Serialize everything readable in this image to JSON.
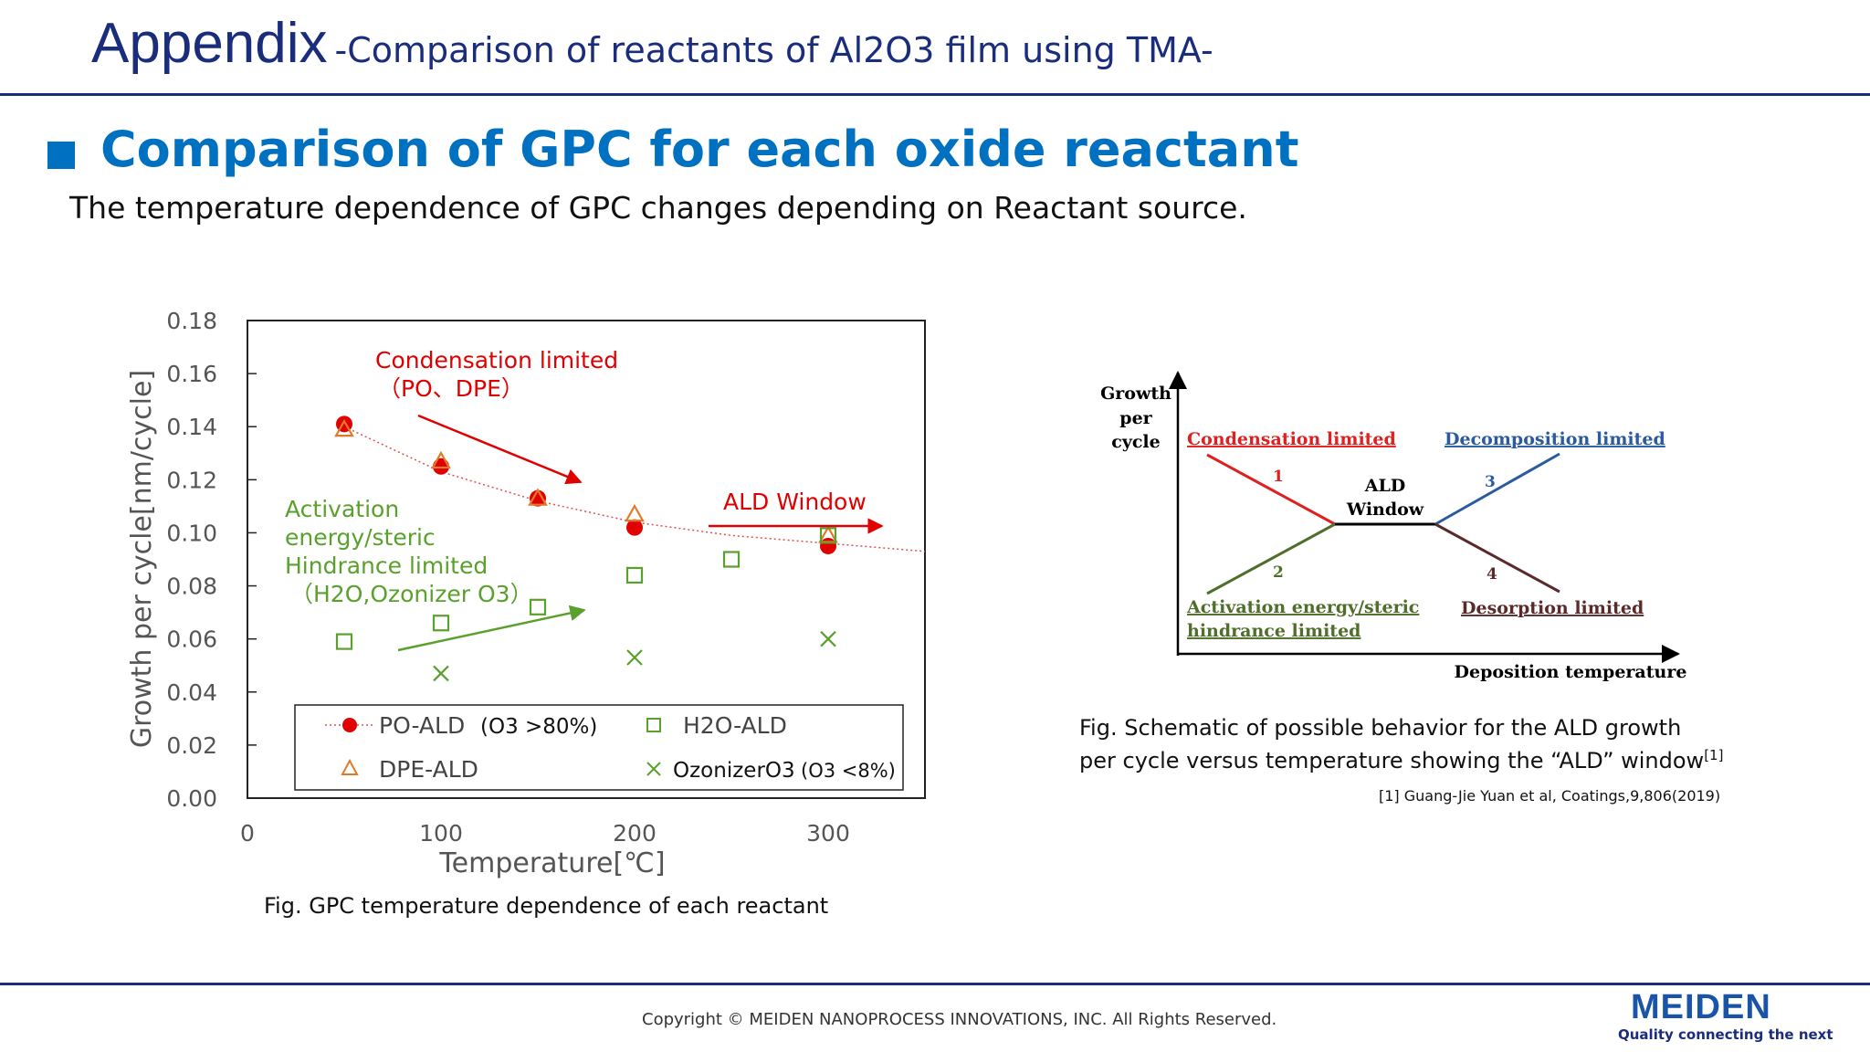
{
  "header": {
    "title": "Appendix",
    "subtitle": "-Comparison of reactants of Al2O3 film using TMA-"
  },
  "section": {
    "title": "Comparison of GPC for each oxide reactant",
    "description": "The temperature dependence of GPC changes depending on Reactant source."
  },
  "colors": {
    "brand_blue": "#1a2c7c",
    "accent_blue": "#0070c0",
    "red": "#e00000",
    "orange": "#e07a2a",
    "green": "#5aa02c"
  },
  "chart_data": [
    {
      "type": "scatter",
      "xlabel": "Temperature[℃]",
      "ylabel": "Growth per cycle[nm/cycle]",
      "xlim": [
        0,
        350
      ],
      "ylim": [
        0,
        0.18
      ],
      "x_ticks": [
        "0",
        "100",
        "200",
        "300"
      ],
      "y_ticks": [
        "0.00",
        "0.02",
        "0.04",
        "0.06",
        "0.08",
        "0.10",
        "0.12",
        "0.14",
        "0.16",
        "0.18"
      ],
      "series": [
        {
          "name": "PO-ALD",
          "note": "(O3 >80%)",
          "marker": "circle",
          "color": "#e00000",
          "x": [
            50,
            100,
            150,
            200,
            300
          ],
          "y": [
            0.141,
            0.125,
            0.113,
            0.102,
            0.095
          ]
        },
        {
          "name": "DPE-ALD",
          "marker": "triangle",
          "color": "#e07a2a",
          "x": [
            50,
            100,
            150,
            200,
            300
          ],
          "y": [
            0.139,
            0.127,
            0.113,
            0.107,
            0.099
          ]
        },
        {
          "name": "H2O-ALD",
          "marker": "square",
          "color": "#5aa02c",
          "x": [
            50,
            100,
            150,
            200,
            250,
            300
          ],
          "y": [
            0.059,
            0.066,
            0.072,
            0.084,
            0.09,
            0.099
          ]
        },
        {
          "name": "OzonizerO3",
          "note": "(O3 <8%)",
          "marker": "x",
          "color": "#5aa02c",
          "x": [
            100,
            200,
            300
          ],
          "y": [
            0.047,
            0.053,
            0.06
          ]
        }
      ],
      "trendline": {
        "x": [
          50,
          100,
          150,
          200,
          250,
          300,
          350
        ],
        "y": [
          0.14,
          0.123,
          0.112,
          0.104,
          0.099,
          0.096,
          0.093
        ]
      },
      "annotations": {
        "condensation_line1": "Condensation limited",
        "condensation_line2": "（PO、DPE）",
        "ald_window": "ALD Window",
        "activation_line1": "Activation",
        "activation_line2": "energy/steric",
        "activation_line3": "Hindrance limited",
        "activation_line4": "（H2O,Ozonizer O3）"
      },
      "legend": "bottom",
      "caption": "Fig. GPC temperature dependence of each reactant"
    },
    {
      "type": "diagram",
      "ylabel_lines": [
        "Growth",
        "per",
        "cycle"
      ],
      "xlabel": "Deposition temperature",
      "labels": {
        "condensation": "Condensation limited",
        "decomposition": "Decomposition limited",
        "ald_window_1": "ALD",
        "ald_window_2": "Window",
        "activation_1": "Activation energy/steric",
        "activation_2": "hindrance limited",
        "desorption": "Desorption limited"
      },
      "numbers": [
        "1",
        "2",
        "3",
        "4"
      ],
      "caption_line1": "Fig. Schematic of possible behavior for the ALD growth",
      "caption_line2": "per cycle versus temperature showing the “ALD” window",
      "caption_ref": "[1]",
      "citation": "[1] Guang-Jie Yuan et al, Coatings,9,806(2019)"
    }
  ],
  "footer": {
    "copyright": "Copyright © MEIDEN NANOPROCESS INNOVATIONS, INC.  All Rights Reserved.",
    "brand": "MEIDEN",
    "tagline": "Quality connecting the next"
  }
}
